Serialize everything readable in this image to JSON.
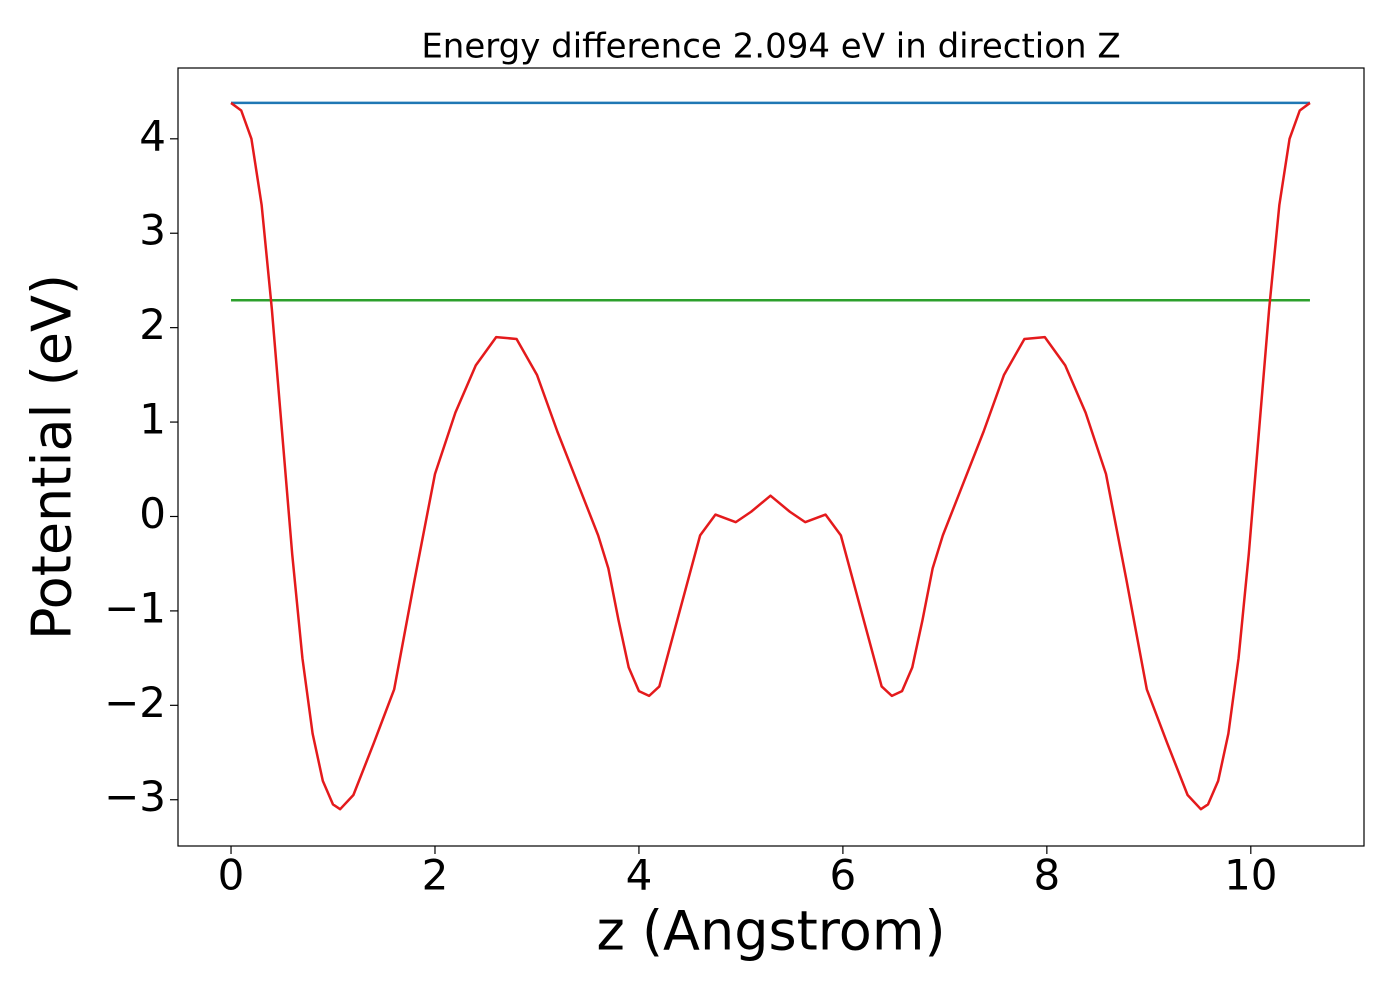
{
  "chart_data": {
    "type": "line",
    "title": "Energy difference 2.094 eV in direction Z",
    "xlabel": "z (Angstrom)",
    "ylabel": "Potential (eV)",
    "xlim": [
      -0.52,
      11.11
    ],
    "ylim": [
      -3.49,
      4.75
    ],
    "xticks": [
      0,
      2,
      4,
      6,
      8,
      10
    ],
    "yticks": [
      {
        "value": -3,
        "label": "−3"
      },
      {
        "value": -2,
        "label": "−2"
      },
      {
        "value": -1,
        "label": "−1"
      },
      0,
      1,
      2,
      3,
      4
    ],
    "series": [
      {
        "color": "#1f77b4",
        "x": [
          0,
          10.58
        ],
        "values": [
          4.38,
          4.38
        ]
      },
      {
        "color": "#2ca02c",
        "x": [
          0,
          10.58
        ],
        "values": [
          2.29,
          2.29
        ]
      },
      {
        "color": "#e41a1c",
        "x": [
          0,
          0.1,
          0.2,
          0.3,
          0.4,
          0.5,
          0.6,
          0.7,
          0.8,
          0.9,
          1.0,
          1.07,
          1.2,
          1.4,
          1.6,
          1.8,
          2.0,
          2.2,
          2.4,
          2.6,
          2.8,
          3.0,
          3.2,
          3.4,
          3.6,
          3.7,
          3.8,
          3.9,
          4.0,
          4.1,
          4.2,
          4.4,
          4.6,
          4.75,
          4.95,
          5.1,
          5.29,
          5.48,
          5.63,
          5.83,
          5.98,
          6.18,
          6.38,
          6.48,
          6.58,
          6.68,
          6.78,
          6.88,
          6.98,
          7.18,
          7.38,
          7.58,
          7.78,
          7.98,
          8.18,
          8.38,
          8.58,
          8.78,
          8.98,
          9.18,
          9.38,
          9.51,
          9.58,
          9.68,
          9.78,
          9.88,
          9.98,
          10.08,
          10.18,
          10.28,
          10.38,
          10.48,
          10.58
        ],
        "values": [
          4.38,
          4.3,
          4.0,
          3.3,
          2.2,
          0.9,
          -0.4,
          -1.5,
          -2.3,
          -2.8,
          -3.05,
          -3.1,
          -2.95,
          -2.4,
          -1.83,
          -0.67,
          0.45,
          1.1,
          1.6,
          1.9,
          1.88,
          1.5,
          0.9,
          0.35,
          -0.2,
          -0.55,
          -1.1,
          -1.6,
          -1.85,
          -1.9,
          -1.8,
          -1.0,
          -0.2,
          0.02,
          -0.06,
          0.05,
          0.22,
          0.05,
          -0.06,
          0.02,
          -0.2,
          -1.0,
          -1.8,
          -1.9,
          -1.85,
          -1.6,
          -1.1,
          -0.55,
          -0.2,
          0.35,
          0.9,
          1.5,
          1.88,
          1.9,
          1.6,
          1.1,
          0.45,
          -0.67,
          -1.83,
          -2.4,
          -2.95,
          -3.1,
          -3.05,
          -2.8,
          -2.3,
          -1.5,
          -0.4,
          0.9,
          2.2,
          3.3,
          4.0,
          4.3,
          4.38
        ]
      }
    ]
  }
}
